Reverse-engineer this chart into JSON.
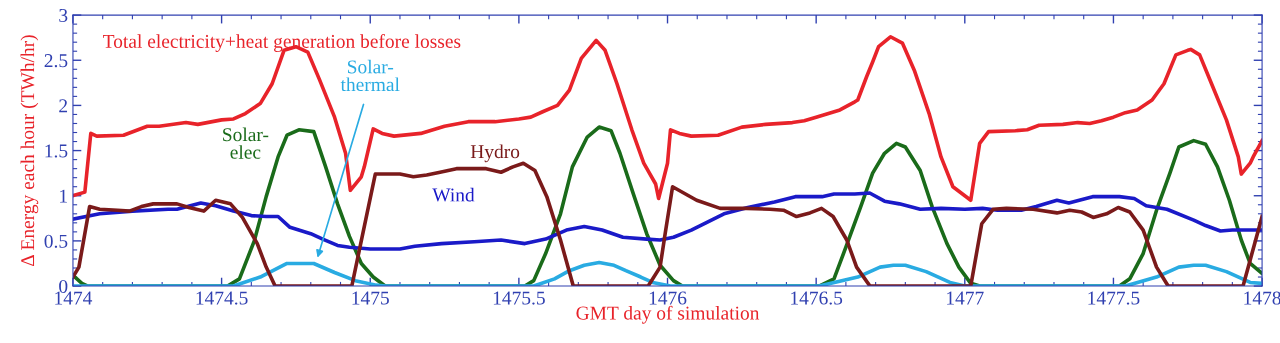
{
  "chart_data": {
    "type": "line",
    "xlabel": "GMT day of simulation",
    "ylabel": "Δ Energy each hour (TWh/hr)",
    "xlim": [
      1474,
      1478
    ],
    "xticks": [
      1474,
      1474.5,
      1475,
      1475.5,
      1476,
      1476.5,
      1477,
      1477.5,
      1478
    ],
    "ylim": [
      0,
      3
    ],
    "yticks": [
      0,
      0.5,
      1,
      1.5,
      2,
      2.5,
      3
    ],
    "grid": false,
    "legend": false,
    "marker": "none",
    "line_style": "solid",
    "series": [
      {
        "name": "Total electricity+heat generation before losses",
        "color": "#e8232a",
        "x": [
          1474.0,
          1474.04,
          1474.06,
          1474.08,
          1474.17,
          1474.21,
          1474.25,
          1474.29,
          1474.38,
          1474.42,
          1474.5,
          1474.54,
          1474.58,
          1474.63,
          1474.67,
          1474.71,
          1474.75,
          1474.79,
          1474.83,
          1474.88,
          1474.917,
          1474.933,
          1474.97,
          1474.98,
          1475.01,
          1475.04,
          1475.08,
          1475.17,
          1475.25,
          1475.33,
          1475.42,
          1475.5,
          1475.54,
          1475.58,
          1475.63,
          1475.67,
          1475.71,
          1475.76,
          1475.79,
          1475.83,
          1475.88,
          1475.92,
          1475.96,
          1475.97,
          1476.0,
          1476.01,
          1476.04,
          1476.08,
          1476.17,
          1476.25,
          1476.33,
          1476.42,
          1476.46,
          1476.5,
          1476.58,
          1476.63,
          1476.64,
          1476.67,
          1476.69,
          1476.71,
          1476.75,
          1476.79,
          1476.83,
          1476.88,
          1476.92,
          1476.96,
          1477.02,
          1477.05,
          1477.08,
          1477.17,
          1477.21,
          1477.25,
          1477.33,
          1477.38,
          1477.42,
          1477.46,
          1477.5,
          1477.54,
          1477.58,
          1477.63,
          1477.67,
          1477.71,
          1477.75,
          1477.76,
          1477.79,
          1477.83,
          1477.88,
          1477.92,
          1477.93,
          1477.96,
          1477.97,
          1478.0
        ],
        "values": [
          1.0,
          1.04,
          1.69,
          1.66,
          1.67,
          1.72,
          1.77,
          1.77,
          1.81,
          1.79,
          1.84,
          1.85,
          1.91,
          2.02,
          2.24,
          2.61,
          2.65,
          2.59,
          2.28,
          1.87,
          1.47,
          1.06,
          1.21,
          1.32,
          1.74,
          1.69,
          1.66,
          1.69,
          1.77,
          1.82,
          1.82,
          1.85,
          1.87,
          1.93,
          2.0,
          2.17,
          2.52,
          2.72,
          2.61,
          2.24,
          1.73,
          1.36,
          1.13,
          0.97,
          1.36,
          1.73,
          1.69,
          1.66,
          1.67,
          1.76,
          1.79,
          1.81,
          1.83,
          1.87,
          1.95,
          2.04,
          2.06,
          2.32,
          2.48,
          2.65,
          2.76,
          2.69,
          2.39,
          1.91,
          1.43,
          1.1,
          0.95,
          1.58,
          1.71,
          1.72,
          1.73,
          1.78,
          1.79,
          1.81,
          1.8,
          1.83,
          1.87,
          1.92,
          1.95,
          2.06,
          2.24,
          2.56,
          2.61,
          2.62,
          2.56,
          2.24,
          1.84,
          1.43,
          1.24,
          1.36,
          1.43,
          1.61
        ]
      },
      {
        "name": "Solar-\nelec",
        "color": "#1a6b1a",
        "x": [
          1474.0,
          1474.03,
          1474.05,
          1474.52,
          1474.56,
          1474.61,
          1474.65,
          1474.69,
          1474.72,
          1474.76,
          1474.81,
          1474.85,
          1474.89,
          1474.93,
          1474.97,
          1475.01,
          1475.05,
          1475.52,
          1475.55,
          1475.59,
          1475.64,
          1475.68,
          1475.73,
          1475.77,
          1475.81,
          1475.84,
          1475.885,
          1475.93,
          1475.975,
          1476.02,
          1476.05,
          1476.51,
          1476.56,
          1476.6,
          1476.65,
          1476.69,
          1476.73,
          1476.77,
          1476.8,
          1476.85,
          1476.89,
          1476.94,
          1476.98,
          1477.02,
          1477.05,
          1477.52,
          1477.555,
          1477.6,
          1477.645,
          1477.69,
          1477.72,
          1477.77,
          1477.81,
          1477.85,
          1477.89,
          1477.93,
          1477.96,
          1478.0
        ],
        "values": [
          0.12,
          0.03,
          0.0,
          0.0,
          0.08,
          0.5,
          0.99,
          1.43,
          1.67,
          1.73,
          1.71,
          1.32,
          0.91,
          0.55,
          0.25,
          0.1,
          0.0,
          0.0,
          0.06,
          0.36,
          0.8,
          1.32,
          1.65,
          1.76,
          1.72,
          1.47,
          1.02,
          0.58,
          0.23,
          0.06,
          0.0,
          0.0,
          0.08,
          0.43,
          0.88,
          1.25,
          1.47,
          1.58,
          1.54,
          1.28,
          0.88,
          0.47,
          0.21,
          0.03,
          0.0,
          0.0,
          0.08,
          0.36,
          0.84,
          1.25,
          1.54,
          1.61,
          1.57,
          1.32,
          0.95,
          0.51,
          0.25,
          0.14
        ]
      },
      {
        "name": "Solar-\nthermal",
        "color": "#29abe2",
        "x": [
          1474.0,
          1474.54,
          1474.63,
          1474.72,
          1474.81,
          1474.88,
          1474.95,
          1475.02,
          1475.05,
          1475.55,
          1475.62,
          1475.67,
          1475.72,
          1475.77,
          1475.82,
          1475.86,
          1475.91,
          1475.95,
          1476.01,
          1476.51,
          1476.64,
          1476.715,
          1476.76,
          1476.8,
          1476.87,
          1476.95,
          1477.0,
          1477.54,
          1477.645,
          1477.72,
          1477.77,
          1477.81,
          1477.88,
          1477.96,
          1478.0
        ],
        "values": [
          0.0,
          0.0,
          0.1,
          0.25,
          0.25,
          0.15,
          0.06,
          0.01,
          0.0,
          0.0,
          0.08,
          0.17,
          0.23,
          0.26,
          0.23,
          0.17,
          0.1,
          0.04,
          0.0,
          0.0,
          0.1,
          0.21,
          0.23,
          0.23,
          0.16,
          0.04,
          0.0,
          0.0,
          0.1,
          0.21,
          0.23,
          0.23,
          0.16,
          0.04,
          0.03
        ]
      },
      {
        "name": "Wind",
        "color": "#1a1ac8",
        "x": [
          1474.0,
          1474.09,
          1474.2,
          1474.32,
          1474.35,
          1474.43,
          1474.48,
          1474.54,
          1474.6,
          1474.65,
          1474.69,
          1474.73,
          1474.8,
          1474.84,
          1474.89,
          1474.93,
          1475.0,
          1475.1,
          1475.15,
          1475.24,
          1475.35,
          1475.44,
          1475.52,
          1475.59,
          1475.66,
          1475.72,
          1475.78,
          1475.85,
          1475.93,
          1475.975,
          1476.02,
          1476.08,
          1476.19,
          1476.27,
          1476.36,
          1476.43,
          1476.52,
          1476.56,
          1476.63,
          1476.68,
          1476.73,
          1476.78,
          1476.85,
          1476.92,
          1477.0,
          1477.06,
          1477.11,
          1477.19,
          1477.24,
          1477.31,
          1477.35,
          1477.43,
          1477.52,
          1477.57,
          1477.61,
          1477.68,
          1477.77,
          1477.81,
          1477.86,
          1477.9,
          1478.0
        ],
        "values": [
          0.74,
          0.8,
          0.83,
          0.85,
          0.85,
          0.92,
          0.89,
          0.83,
          0.78,
          0.77,
          0.77,
          0.65,
          0.58,
          0.52,
          0.45,
          0.43,
          0.41,
          0.41,
          0.44,
          0.47,
          0.49,
          0.51,
          0.47,
          0.52,
          0.62,
          0.66,
          0.62,
          0.54,
          0.52,
          0.51,
          0.54,
          0.62,
          0.8,
          0.87,
          0.93,
          0.99,
          0.99,
          1.02,
          1.02,
          1.03,
          0.94,
          0.91,
          0.85,
          0.86,
          0.85,
          0.86,
          0.84,
          0.84,
          0.88,
          0.95,
          0.92,
          0.99,
          0.99,
          0.97,
          0.89,
          0.85,
          0.73,
          0.67,
          0.61,
          0.62,
          0.62
        ]
      },
      {
        "name": "Hydro",
        "color": "#7a1a1a",
        "x": [
          1474.0,
          1474.02,
          1474.056,
          1474.09,
          1474.15,
          1474.19,
          1474.23,
          1474.27,
          1474.35,
          1474.39,
          1474.44,
          1474.48,
          1474.53,
          1474.57,
          1474.62,
          1474.65,
          1474.68,
          1474.938,
          1475.017,
          1475.056,
          1475.1,
          1475.145,
          1475.19,
          1475.235,
          1475.29,
          1475.35,
          1475.39,
          1475.44,
          1475.48,
          1475.515,
          1475.554,
          1475.594,
          1475.64,
          1475.683,
          1475.935,
          1475.975,
          1475.992,
          1476.017,
          1476.098,
          1476.177,
          1476.266,
          1476.345,
          1476.39,
          1476.434,
          1476.479,
          1476.518,
          1476.557,
          1476.603,
          1476.636,
          1476.681,
          1477.02,
          1477.057,
          1477.095,
          1477.14,
          1477.23,
          1477.31,
          1477.353,
          1477.393,
          1477.432,
          1477.477,
          1477.516,
          1477.555,
          1477.6,
          1477.645,
          1477.684,
          1477.936,
          1478.0
        ],
        "values": [
          0.1,
          0.21,
          0.88,
          0.85,
          0.84,
          0.83,
          0.88,
          0.91,
          0.91,
          0.87,
          0.83,
          0.95,
          0.91,
          0.76,
          0.47,
          0.21,
          0.0,
          0.0,
          1.24,
          1.24,
          1.24,
          1.21,
          1.23,
          1.26,
          1.3,
          1.3,
          1.3,
          1.26,
          1.32,
          1.36,
          1.28,
          0.99,
          0.51,
          0.0,
          0.0,
          0.21,
          0.58,
          1.1,
          0.95,
          0.86,
          0.86,
          0.85,
          0.84,
          0.77,
          0.81,
          0.86,
          0.77,
          0.51,
          0.21,
          0.0,
          0.0,
          0.69,
          0.85,
          0.86,
          0.85,
          0.81,
          0.84,
          0.82,
          0.76,
          0.8,
          0.87,
          0.82,
          0.62,
          0.21,
          0.0,
          0.0,
          0.77
        ]
      }
    ]
  }
}
